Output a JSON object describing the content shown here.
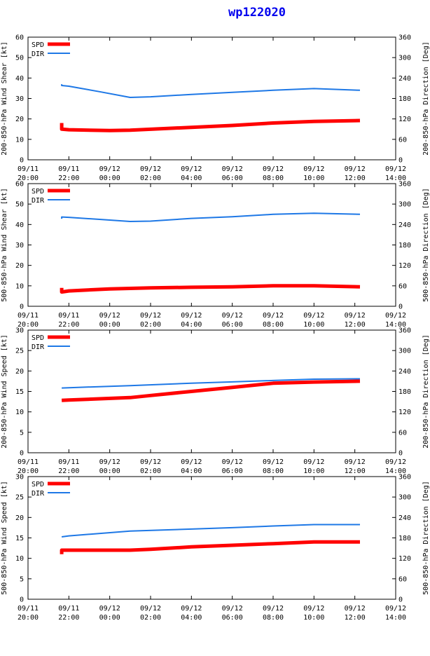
{
  "title": "wp122020",
  "colors": {
    "spd": "#ff0000",
    "dir": "#1e78e6",
    "title": "#0000ee"
  },
  "chart_data": [
    {
      "type": "line",
      "ylabel": "200-850-hPa Wind Shear [kt]",
      "y2label": "200-850-hPa Direction [Deg]",
      "ylim": [
        0,
        60
      ],
      "y2lim": [
        0,
        360
      ],
      "yticks": [
        "0",
        "10",
        "20",
        "30",
        "40",
        "50",
        "60"
      ],
      "y2ticks": [
        "0",
        "60",
        "120",
        "180",
        "240",
        "300",
        "360"
      ],
      "xlim": [
        0,
        18
      ],
      "xticks": [
        [
          "09/11",
          "20:00"
        ],
        [
          "09/11",
          "22:00"
        ],
        [
          "09/12",
          "00:00"
        ],
        [
          "09/12",
          "02:00"
        ],
        [
          "09/12",
          "04:00"
        ],
        [
          "09/12",
          "06:00"
        ],
        [
          "09/12",
          "08:00"
        ],
        [
          "09/12",
          "10:00"
        ],
        [
          "09/12",
          "12:00"
        ],
        [
          "09/12",
          "14:00"
        ]
      ],
      "legend": [
        "SPD",
        "DIR"
      ],
      "legend_position": "top-left",
      "series": [
        {
          "name": "SPD",
          "axis": "left",
          "x": [
            1.65,
            1.65,
            2,
            4,
            5,
            10,
            12,
            14,
            16.25
          ],
          "y": [
            18,
            15,
            14.7,
            14.3,
            14.5,
            16.8,
            18,
            18.8,
            19.2
          ]
        },
        {
          "name": "DIR",
          "axis": "right",
          "x": [
            1.65,
            1.65,
            2,
            3.5,
            5,
            6,
            8,
            10,
            12,
            14,
            16.25
          ],
          "y": [
            222,
            218,
            216,
            200,
            183,
            185,
            192,
            198,
            204,
            209,
            204
          ]
        }
      ]
    },
    {
      "type": "line",
      "ylabel": "500-850-hPa Wind Shear [kt]",
      "y2label": "500-850-hPa Direction [Deg]",
      "ylim": [
        0,
        60
      ],
      "y2lim": [
        0,
        360
      ],
      "yticks": [
        "0",
        "10",
        "20",
        "30",
        "40",
        "50",
        "60"
      ],
      "y2ticks": [
        "0",
        "60",
        "120",
        "180",
        "240",
        "300",
        "360"
      ],
      "xlim": [
        0,
        18
      ],
      "xticks": [
        [
          "09/11",
          "20:00"
        ],
        [
          "09/11",
          "22:00"
        ],
        [
          "09/12",
          "00:00"
        ],
        [
          "09/12",
          "02:00"
        ],
        [
          "09/12",
          "04:00"
        ],
        [
          "09/12",
          "06:00"
        ],
        [
          "09/12",
          "08:00"
        ],
        [
          "09/12",
          "10:00"
        ],
        [
          "09/12",
          "12:00"
        ],
        [
          "09/12",
          "14:00"
        ]
      ],
      "legend": [
        "SPD",
        "DIR"
      ],
      "legend_position": "top-left",
      "series": [
        {
          "name": "SPD",
          "axis": "left",
          "x": [
            1.65,
            1.65,
            2,
            4,
            6,
            8,
            10,
            12,
            14,
            16.25
          ],
          "y": [
            9,
            7,
            7.5,
            8.5,
            9,
            9.3,
            9.5,
            10,
            10,
            9.5
          ]
        },
        {
          "name": "DIR",
          "axis": "right",
          "x": [
            1.65,
            1.65,
            2,
            3.5,
            5,
            6,
            8,
            10,
            12,
            14,
            16.25
          ],
          "y": [
            257,
            262,
            261,
            255,
            249,
            250,
            258,
            263,
            270,
            273,
            270
          ]
        }
      ]
    },
    {
      "type": "line",
      "ylabel": "200-850-hPa Wind Speed [kt]",
      "y2label": "200-850-hPa Direction [Deg]",
      "ylim": [
        0,
        30
      ],
      "y2lim": [
        0,
        360
      ],
      "yticks": [
        "0",
        "5",
        "10",
        "15",
        "20",
        "25",
        "30"
      ],
      "y2ticks": [
        "0",
        "60",
        "120",
        "180",
        "240",
        "300",
        "360"
      ],
      "xlim": [
        0,
        18
      ],
      "xticks": [
        [
          "09/11",
          "20:00"
        ],
        [
          "09/11",
          "22:00"
        ],
        [
          "09/12",
          "00:00"
        ],
        [
          "09/12",
          "02:00"
        ],
        [
          "09/12",
          "04:00"
        ],
        [
          "09/12",
          "06:00"
        ],
        [
          "09/12",
          "08:00"
        ],
        [
          "09/12",
          "10:00"
        ],
        [
          "09/12",
          "12:00"
        ],
        [
          "09/12",
          "14:00"
        ]
      ],
      "legend": [
        "SPD",
        "DIR"
      ],
      "legend_position": "top-left",
      "series": [
        {
          "name": "SPD",
          "axis": "left",
          "x": [
            1.65,
            2,
            5,
            6,
            8,
            10,
            12,
            14,
            16.25
          ],
          "y": [
            12.8,
            12.9,
            13.5,
            14,
            15,
            16,
            17,
            17.3,
            17.5
          ]
        },
        {
          "name": "DIR",
          "axis": "right",
          "x": [
            1.65,
            2,
            5,
            8,
            10,
            12,
            14,
            16.25
          ],
          "y": [
            190,
            191,
            197,
            204,
            208,
            212,
            216,
            217
          ]
        }
      ]
    },
    {
      "type": "line",
      "ylabel": "500-850-hPa Wind Speed [kt]",
      "y2label": "500-850-hPa Direction [Deg]",
      "ylim": [
        0,
        30
      ],
      "y2lim": [
        0,
        360
      ],
      "yticks": [
        "0",
        "5",
        "10",
        "15",
        "20",
        "25",
        "30"
      ],
      "y2ticks": [
        "0",
        "60",
        "120",
        "180",
        "240",
        "300",
        "360"
      ],
      "xlim": [
        0,
        18
      ],
      "xticks": [
        [
          "09/11",
          "20:00"
        ],
        [
          "09/11",
          "22:00"
        ],
        [
          "09/12",
          "00:00"
        ],
        [
          "09/12",
          "02:00"
        ],
        [
          "09/12",
          "04:00"
        ],
        [
          "09/12",
          "06:00"
        ],
        [
          "09/12",
          "08:00"
        ],
        [
          "09/12",
          "10:00"
        ],
        [
          "09/12",
          "12:00"
        ],
        [
          "09/12",
          "14:00"
        ]
      ],
      "legend": [
        "SPD",
        "DIR"
      ],
      "legend_position": "top-left",
      "series": [
        {
          "name": "SPD",
          "axis": "left",
          "x": [
            1.65,
            1.65,
            2,
            5,
            6,
            8,
            10,
            12,
            14,
            16.25
          ],
          "y": [
            11,
            12,
            12,
            12,
            12.2,
            12.8,
            13.2,
            13.6,
            14,
            14
          ]
        },
        {
          "name": "DIR",
          "axis": "right",
          "x": [
            1.65,
            2,
            5,
            8,
            10,
            12,
            14,
            16.25
          ],
          "y": [
            183,
            186,
            200,
            206,
            210,
            215,
            219,
            219
          ]
        }
      ]
    }
  ]
}
